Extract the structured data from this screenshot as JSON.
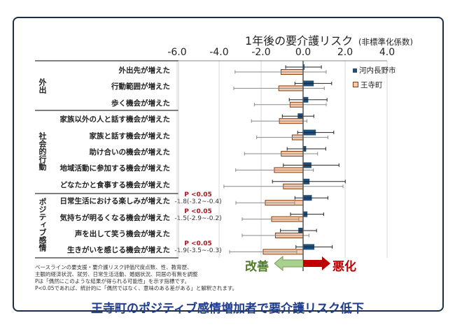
{
  "chart_data": {
    "type": "bar",
    "orientation": "horizontal",
    "title": "1年後の要介護リスク",
    "subtitle": "(非標準化係数)",
    "xlim": [
      -6,
      4
    ],
    "xticks": [
      "-6.0",
      "-4.0",
      "-2.0",
      "0.0",
      "2.0",
      "4.0"
    ],
    "grid": true,
    "legend_position": "right",
    "groups": [
      {
        "name": "外出",
        "start": 0,
        "count": 3
      },
      {
        "name": "社会的行動",
        "start": 3,
        "count": 5
      },
      {
        "name": "ポジティブ感情",
        "start": 8,
        "count": 4
      }
    ],
    "categories": [
      "外出先が増えた",
      "行動範囲が増えた",
      "歩く機会が増えた",
      "家族以外の人と話す機会が増えた",
      "家族と話す機会が増えた",
      "助け合いの機会が増えた",
      "地域活動に参加する機会が増えた",
      "どなたかと食事する機会が増えた",
      "日常生活における楽しみが増えた",
      "気持ちが明るくなる機会が増えた",
      "声を出して笑う機会が増えた",
      "生きがいを感じる機会が増えた"
    ],
    "series": [
      {
        "name": "河内長野市",
        "color": "#1f4e79",
        "values": [
          0.0,
          0.49,
          0.23,
          -0.24,
          0.59,
          0.13,
          0.38,
          0.29,
          0.4,
          0.19,
          -0.21,
          0.52
        ],
        "ci_low": [
          -0.83,
          -0.39,
          -0.66,
          -0.99,
          -0.26,
          -0.76,
          -0.94,
          -1.46,
          -0.39,
          -0.6,
          -1.08,
          -0.34
        ],
        "ci_high": [
          0.87,
          1.36,
          1.14,
          0.51,
          1.46,
          1.08,
          1.71,
          2.01,
          1.18,
          0.98,
          0.64,
          1.39
        ]
      },
      {
        "name": "王寺町",
        "color": "#f8cbad",
        "values": [
          -1.05,
          -1.16,
          -0.62,
          -1.13,
          -0.52,
          -1.04,
          -1.37,
          -0.94,
          -1.8,
          -1.5,
          -1.32,
          -1.9
        ],
        "ci_low": [
          -3.24,
          -3.3,
          -2.32,
          -2.46,
          -2.21,
          -2.79,
          -3.21,
          -3.77,
          -3.2,
          -2.9,
          -2.9,
          -3.5
        ],
        "ci_high": [
          1.1,
          1.01,
          1.1,
          0.18,
          1.18,
          0.69,
          0.49,
          1.9,
          -0.4,
          -0.2,
          0.28,
          -0.3
        ]
      }
    ],
    "annotations": [
      {
        "row": 8,
        "p": "P <0.05",
        "text": "-1.8(-3.2~-0.4)"
      },
      {
        "row": 9,
        "p": "P <0.05",
        "text": "-1.5(-2.9~-0.2)"
      },
      {
        "row": 11,
        "p": "P <0.05",
        "text": "-1.9(-3.5~-0.3)"
      }
    ]
  },
  "direction": {
    "better": "改善",
    "worse": "悪化",
    "better_color": "#a9d18e",
    "worse_color": "#c00000"
  },
  "notes": [
    "ベースラインの要支援・要介護リスク評価尺度点数、性、教育歴、",
    "主観的経済状況、就労、日常生活活動、婚姻状況、同居の有無を調整",
    "Pは「偶然にこのような結果が得られる可能性」を示す指標です。",
    "P<0.05であれば、統計的に「偶然ではなく、意味のある差がある」と解釈されます。"
  ],
  "footer": "王寺町のポジティブ感情増加者で要介護リスク低下"
}
